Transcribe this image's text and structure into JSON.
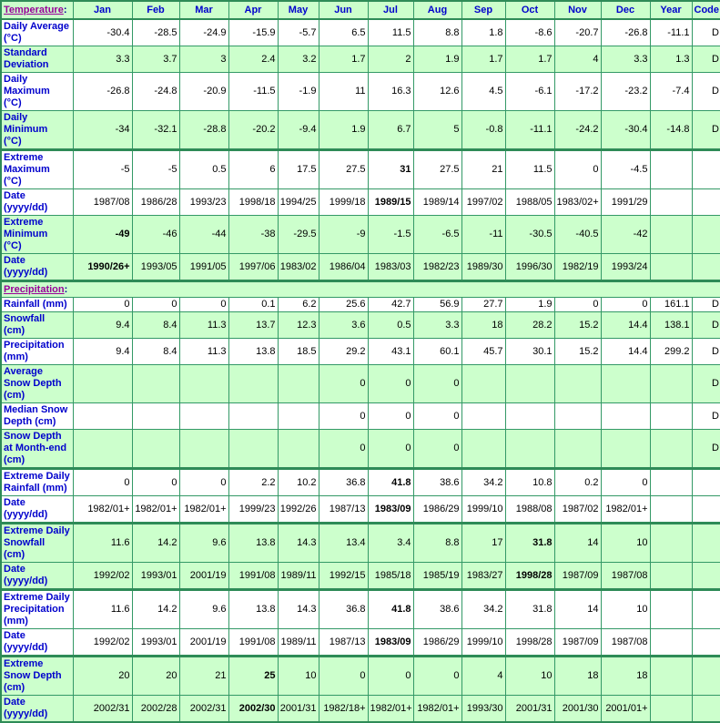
{
  "colors": {
    "border_thin": "#339966",
    "border_thick": "#2e8b57",
    "green_background": "#ccffcc",
    "white_background": "#ffffff",
    "label_blue": "#0000cc",
    "link_purple": "#990099",
    "value_black": "#000000"
  },
  "header": {
    "temperature_link": "Temperature",
    "colon": ":",
    "columns": [
      "Jan",
      "Feb",
      "Mar",
      "Apr",
      "May",
      "Jun",
      "Jul",
      "Aug",
      "Sep",
      "Oct",
      "Nov",
      "Dec",
      "Year",
      "Code"
    ]
  },
  "precipitation_header": {
    "precipitation_link": "Precipitation",
    "colon": ":"
  },
  "temperature_rows": [
    {
      "label": [
        "Daily Average",
        "(°C)"
      ],
      "bg": "w",
      "thick": false,
      "bold": -1,
      "cells": [
        "-30.4",
        "-28.5",
        "-24.9",
        "-15.9",
        "-5.7",
        "6.5",
        "11.5",
        "8.8",
        "1.8",
        "-8.6",
        "-20.7",
        "-26.8",
        "-11.1",
        "D"
      ]
    },
    {
      "label": [
        "Standard",
        "Deviation"
      ],
      "bg": "g",
      "thick": false,
      "bold": -1,
      "cells": [
        "3.3",
        "3.7",
        "3",
        "2.4",
        "3.2",
        "1.7",
        "2",
        "1.9",
        "1.7",
        "1.7",
        "4",
        "3.3",
        "1.3",
        "D"
      ]
    },
    {
      "label": [
        "Daily",
        "Maximum",
        "(°C)"
      ],
      "bg": "w",
      "thick": false,
      "bold": -1,
      "cells": [
        "-26.8",
        "-24.8",
        "-20.9",
        "-11.5",
        "-1.9",
        "11",
        "16.3",
        "12.6",
        "4.5",
        "-6.1",
        "-17.2",
        "-23.2",
        "-7.4",
        "D"
      ]
    },
    {
      "label": [
        "Daily",
        "Minimum",
        "(°C)"
      ],
      "bg": "g",
      "thick": false,
      "bold": -1,
      "cells": [
        "-34",
        "-32.1",
        "-28.8",
        "-20.2",
        "-9.4",
        "1.9",
        "6.7",
        "5",
        "-0.8",
        "-11.1",
        "-24.2",
        "-30.4",
        "-14.8",
        "D"
      ]
    },
    {
      "label": [
        "Extreme",
        "Maximum",
        "(°C)"
      ],
      "bg": "w",
      "thick": true,
      "bold": 6,
      "cells": [
        "-5",
        "-5",
        "0.5",
        "6",
        "17.5",
        "27.5",
        "31",
        "27.5",
        "21",
        "11.5",
        "0",
        "-4.5",
        "",
        ""
      ]
    },
    {
      "label": [
        "Date",
        "(yyyy/dd)"
      ],
      "bg": "w",
      "thick": false,
      "bold": 6,
      "cells": [
        "1987/08",
        "1986/28",
        "1993/23",
        "1998/18",
        "1994/25",
        "1999/18",
        "1989/15",
        "1989/14",
        "1997/02",
        "1988/05",
        "1983/02+",
        "1991/29",
        "",
        ""
      ]
    },
    {
      "label": [
        "Extreme",
        "Minimum",
        "(°C)"
      ],
      "bg": "g",
      "thick": false,
      "bold": 0,
      "cells": [
        "-49",
        "-46",
        "-44",
        "-38",
        "-29.5",
        "-9",
        "-1.5",
        "-6.5",
        "-11",
        "-30.5",
        "-40.5",
        "-42",
        "",
        ""
      ]
    },
    {
      "label": [
        "Date",
        "(yyyy/dd)"
      ],
      "bg": "g",
      "thick": false,
      "bold": 0,
      "cells": [
        "1990/26+",
        "1993/05",
        "1991/05",
        "1997/06",
        "1983/02",
        "1986/04",
        "1983/03",
        "1982/23",
        "1989/30",
        "1996/30",
        "1982/19",
        "1993/24",
        "",
        ""
      ]
    }
  ],
  "precipitation_rows": [
    {
      "label": [
        "Rainfall (mm)"
      ],
      "bg": "w",
      "thick": false,
      "bold": -1,
      "cells": [
        "0",
        "0",
        "0",
        "0.1",
        "6.2",
        "25.6",
        "42.7",
        "56.9",
        "27.7",
        "1.9",
        "0",
        "0",
        "161.1",
        "D"
      ]
    },
    {
      "label": [
        "Snowfall",
        "(cm)"
      ],
      "bg": "g",
      "thick": false,
      "bold": -1,
      "cells": [
        "9.4",
        "8.4",
        "11.3",
        "13.7",
        "12.3",
        "3.6",
        "0.5",
        "3.3",
        "18",
        "28.2",
        "15.2",
        "14.4",
        "138.1",
        "D"
      ]
    },
    {
      "label": [
        "Precipitation",
        "(mm)"
      ],
      "bg": "w",
      "thick": false,
      "bold": -1,
      "cells": [
        "9.4",
        "8.4",
        "11.3",
        "13.8",
        "18.5",
        "29.2",
        "43.1",
        "60.1",
        "45.7",
        "30.1",
        "15.2",
        "14.4",
        "299.2",
        "D"
      ]
    },
    {
      "label": [
        "Average",
        "Snow Depth",
        "(cm)"
      ],
      "bg": "g",
      "thick": false,
      "bold": -1,
      "cells": [
        "",
        "",
        "",
        "",
        "",
        "0",
        "0",
        "0",
        "",
        "",
        "",
        "",
        "",
        "D"
      ]
    },
    {
      "label": [
        "Median Snow",
        "Depth (cm)"
      ],
      "bg": "w",
      "thick": false,
      "bold": -1,
      "cells": [
        "",
        "",
        "",
        "",
        "",
        "0",
        "0",
        "0",
        "",
        "",
        "",
        "",
        "",
        "D"
      ]
    },
    {
      "label": [
        "Snow Depth",
        "at Month-end",
        "(cm)"
      ],
      "bg": "g",
      "thick": false,
      "bold": -1,
      "cells": [
        "",
        "",
        "",
        "",
        "",
        "0",
        "0",
        "0",
        "",
        "",
        "",
        "",
        "",
        "D"
      ]
    },
    {
      "label": [
        "Extreme Daily",
        "Rainfall (mm)"
      ],
      "bg": "w",
      "thick": true,
      "bold": 6,
      "cells": [
        "0",
        "0",
        "0",
        "2.2",
        "10.2",
        "36.8",
        "41.8",
        "38.6",
        "34.2",
        "10.8",
        "0.2",
        "0",
        "",
        ""
      ]
    },
    {
      "label": [
        "Date",
        "(yyyy/dd)"
      ],
      "bg": "w",
      "thick": false,
      "bold": 6,
      "cells": [
        "1982/01+",
        "1982/01+",
        "1982/01+",
        "1999/23",
        "1992/26",
        "1987/13",
        "1983/09",
        "1986/29",
        "1999/10",
        "1988/08",
        "1987/02",
        "1982/01+",
        "",
        ""
      ]
    },
    {
      "label": [
        "Extreme Daily",
        "Snowfall",
        "(cm)"
      ],
      "bg": "g",
      "thick": true,
      "bold": 9,
      "cells": [
        "11.6",
        "14.2",
        "9.6",
        "13.8",
        "14.3",
        "13.4",
        "3.4",
        "8.8",
        "17",
        "31.8",
        "14",
        "10",
        "",
        ""
      ]
    },
    {
      "label": [
        "Date",
        "(yyyy/dd)"
      ],
      "bg": "g",
      "thick": false,
      "bold": 9,
      "cells": [
        "1992/02",
        "1993/01",
        "2001/19",
        "1991/08",
        "1989/11",
        "1992/15",
        "1985/18",
        "1985/19",
        "1983/27",
        "1998/28",
        "1987/09",
        "1987/08",
        "",
        ""
      ]
    },
    {
      "label": [
        "Extreme Daily",
        "Precipitation",
        "(mm)"
      ],
      "bg": "w",
      "thick": true,
      "bold": 6,
      "cells": [
        "11.6",
        "14.2",
        "9.6",
        "13.8",
        "14.3",
        "36.8",
        "41.8",
        "38.6",
        "34.2",
        "31.8",
        "14",
        "10",
        "",
        ""
      ]
    },
    {
      "label": [
        "Date",
        "(yyyy/dd)"
      ],
      "bg": "w",
      "thick": false,
      "bold": 6,
      "cells": [
        "1992/02",
        "1993/01",
        "2001/19",
        "1991/08",
        "1989/11",
        "1987/13",
        "1983/09",
        "1986/29",
        "1999/10",
        "1998/28",
        "1987/09",
        "1987/08",
        "",
        ""
      ]
    },
    {
      "label": [
        "Extreme",
        "Snow Depth",
        "(cm)"
      ],
      "bg": "g",
      "thick": true,
      "bold": 3,
      "cells": [
        "20",
        "20",
        "21",
        "25",
        "10",
        "0",
        "0",
        "0",
        "4",
        "10",
        "18",
        "18",
        "",
        ""
      ]
    },
    {
      "label": [
        "Date",
        "(yyyy/dd)"
      ],
      "bg": "g",
      "thick": false,
      "bold": 3,
      "cells": [
        "2002/31",
        "2002/28",
        "2002/31",
        "2002/30",
        "2001/31",
        "1982/18+",
        "1982/01+",
        "1982/01+",
        "1993/30",
        "2001/31",
        "2001/30",
        "2001/01+",
        "",
        ""
      ]
    }
  ]
}
